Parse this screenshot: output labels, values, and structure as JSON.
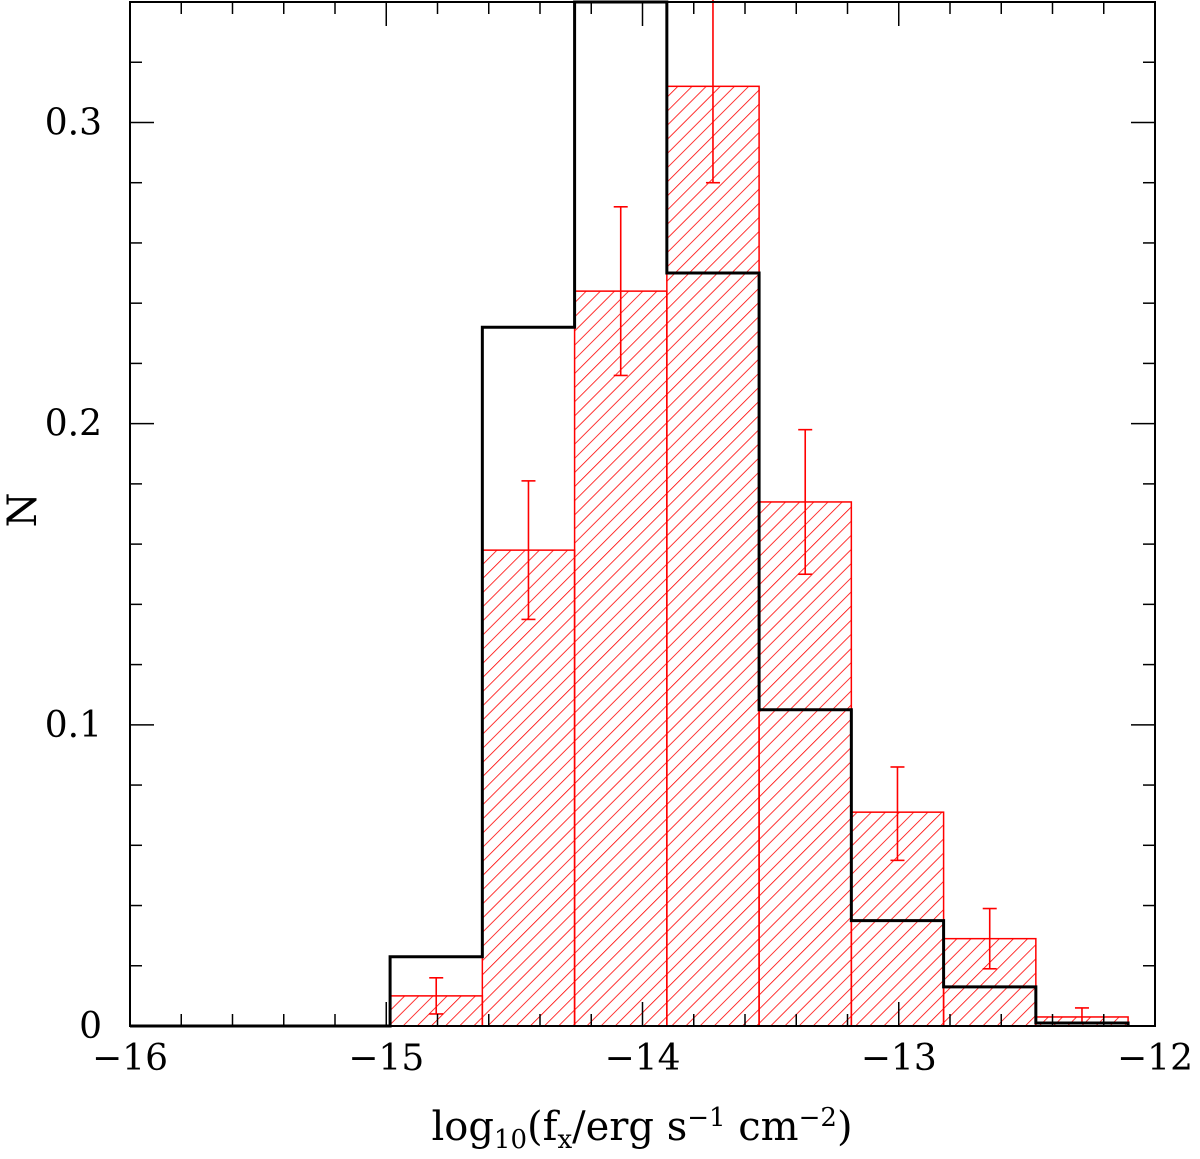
{
  "chart_data": {
    "type": "bar",
    "xlabel": {
      "base": "log",
      "sub1": "10",
      "mid": "(f",
      "sub2": "x",
      "mid2": "/erg s",
      "sup1": "−1",
      "mid3": " cm",
      "sup2": "−2",
      "end": ")"
    },
    "ylabel": "N",
    "xlim": [
      -16,
      -12
    ],
    "ylim": [
      0,
      0.34
    ],
    "x_ticks": [
      "−16",
      "−15",
      "−14",
      "−13",
      "−12"
    ],
    "y_ticks": [
      "0",
      "0.1",
      "0.2",
      "0.3"
    ],
    "bin_edges": [
      -14.985,
      -14.625,
      -14.265,
      -13.905,
      -13.545,
      -13.185,
      -12.825,
      -12.465,
      -12.105
    ],
    "series": [
      {
        "style": "black-outline",
        "values": [
          0.023,
          0.232,
          0.34,
          0.25,
          0.105,
          0.035,
          0.013,
          0.001
        ],
        "color": "#000000"
      },
      {
        "style": "red-hatched",
        "values": [
          0.01,
          0.158,
          0.244,
          0.312,
          0.174,
          0.071,
          0.029,
          0.003
        ],
        "errors_low": [
          0.004,
          0.135,
          0.216,
          0.28,
          0.15,
          0.055,
          0.019,
          0.001
        ],
        "errors_high": [
          0.016,
          0.181,
          0.272,
          0.344,
          0.198,
          0.086,
          0.039,
          0.006
        ],
        "color": "#ff0000"
      }
    ]
  }
}
